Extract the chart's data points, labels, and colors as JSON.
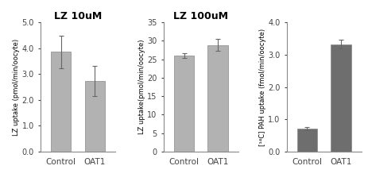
{
  "subplots": [
    {
      "title": "LZ 10uM",
      "categories": [
        "Control",
        "OAT1"
      ],
      "values": [
        3.85,
        2.73
      ],
      "errors": [
        0.62,
        0.58
      ],
      "ylabel": "LZ uptake (pmol/min/oocyte)",
      "ylim": [
        0,
        5.0
      ],
      "yticks": [
        0.0,
        1.0,
        2.0,
        3.0,
        4.0,
        5.0
      ],
      "ytick_labels": [
        "0.0",
        "1.0",
        "2.0",
        "3.0",
        "4.0",
        "5.0"
      ],
      "bar_color": "#b2b2b2",
      "bar_width": 0.6
    },
    {
      "title": "LZ 100uM",
      "categories": [
        "Control",
        "OAT1"
      ],
      "values": [
        26.0,
        28.8
      ],
      "errors": [
        0.7,
        1.6
      ],
      "ylabel": "LZ uptake(pmol/min/oocyte)",
      "ylim": [
        0,
        35
      ],
      "yticks": [
        0,
        5,
        10,
        15,
        20,
        25,
        30,
        35
      ],
      "ytick_labels": [
        "0",
        "5",
        "10",
        "15",
        "20",
        "25",
        "30",
        "35"
      ],
      "bar_color": "#b2b2b2",
      "bar_width": 0.6
    },
    {
      "title": "",
      "categories": [
        "Control",
        "OAT1"
      ],
      "values": [
        0.72,
        3.32
      ],
      "errors": [
        0.05,
        0.14
      ],
      "ylabel": "[¹⁴C] PAH uptake (fmol/min/oocyte)",
      "ylim": [
        0,
        4.0
      ],
      "yticks": [
        0.0,
        1.0,
        2.0,
        3.0,
        4.0
      ],
      "ytick_labels": [
        "0.0",
        "1.0",
        "2.0",
        "3.0",
        "4.0"
      ],
      "bar_color": "#6e6e6e",
      "bar_width": 0.6
    }
  ],
  "background_color": "#ffffff",
  "title_fontsize": 9,
  "label_fontsize": 6.0,
  "tick_fontsize": 7,
  "xtick_fontsize": 7.5
}
